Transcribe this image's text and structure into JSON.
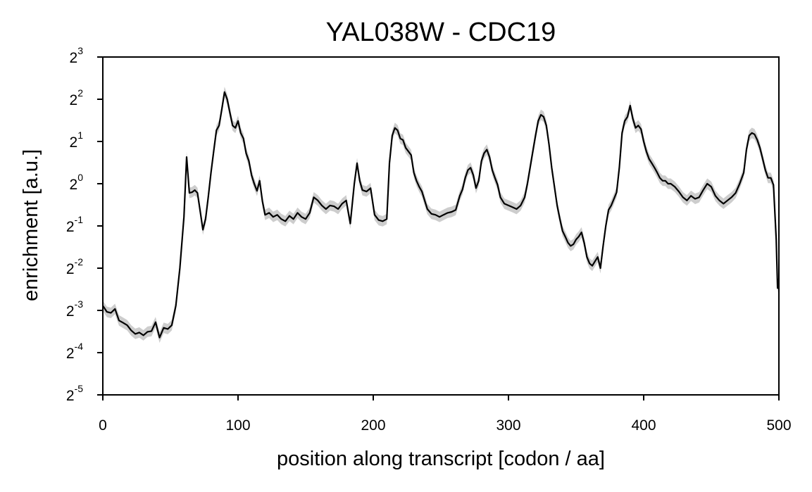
{
  "chart_data": {
    "type": "line",
    "title": "YAL038W - CDC19",
    "xlabel": "position along transcript [codon / aa]",
    "ylabel": "enrichment [a.u.]",
    "xlim": [
      0,
      500
    ],
    "ylim_log2": [
      -5,
      3
    ],
    "yscale": "log2",
    "grid": false,
    "x_ticks": [
      0,
      100,
      200,
      300,
      400,
      500
    ],
    "y_tick_exponents": [
      -5,
      -4,
      -3,
      -2,
      -1,
      0,
      1,
      2,
      3
    ],
    "y_tick_base": "2",
    "colors": {
      "line": "#000000",
      "band": "#c8c8c8"
    },
    "series": [
      {
        "points": [
          [
            0,
            0.135
          ],
          [
            3,
            0.122
          ],
          [
            6,
            0.12
          ],
          [
            9,
            0.128
          ],
          [
            12,
            0.106
          ],
          [
            15,
            0.102
          ],
          [
            18,
            0.098
          ],
          [
            21,
            0.09
          ],
          [
            24,
            0.085
          ],
          [
            27,
            0.087
          ],
          [
            30,
            0.083
          ],
          [
            33,
            0.088
          ],
          [
            36,
            0.089
          ],
          [
            39,
            0.103
          ],
          [
            42,
            0.08
          ],
          [
            45,
            0.094
          ],
          [
            48,
            0.092
          ],
          [
            51,
            0.098
          ],
          [
            54,
            0.135
          ],
          [
            57,
            0.25
          ],
          [
            60,
            0.58
          ],
          [
            62,
            1.55
          ],
          [
            64,
            0.86
          ],
          [
            66,
            0.87
          ],
          [
            68,
            0.9
          ],
          [
            70,
            0.86
          ],
          [
            72,
            0.64
          ],
          [
            74,
            0.47
          ],
          [
            76,
            0.56
          ],
          [
            78,
            0.81
          ],
          [
            80,
            1.2
          ],
          [
            82,
            1.7
          ],
          [
            84,
            2.4
          ],
          [
            86,
            2.6
          ],
          [
            88,
            3.4
          ],
          [
            90,
            4.5
          ],
          [
            92,
            4.0
          ],
          [
            94,
            3.2
          ],
          [
            96,
            2.6
          ],
          [
            98,
            2.5
          ],
          [
            100,
            2.8
          ],
          [
            102,
            2.3
          ],
          [
            104,
            2.1
          ],
          [
            106,
            1.65
          ],
          [
            108,
            1.45
          ],
          [
            110,
            1.15
          ],
          [
            112,
            1.0
          ],
          [
            114,
            0.89
          ],
          [
            116,
            1.05
          ],
          [
            118,
            0.75
          ],
          [
            120,
            0.6
          ],
          [
            123,
            0.62
          ],
          [
            126,
            0.58
          ],
          [
            129,
            0.6
          ],
          [
            132,
            0.56
          ],
          [
            135,
            0.54
          ],
          [
            138,
            0.59
          ],
          [
            141,
            0.56
          ],
          [
            144,
            0.62
          ],
          [
            147,
            0.58
          ],
          [
            150,
            0.56
          ],
          [
            153,
            0.62
          ],
          [
            156,
            0.8
          ],
          [
            159,
            0.76
          ],
          [
            162,
            0.7
          ],
          [
            165,
            0.66
          ],
          [
            168,
            0.7
          ],
          [
            171,
            0.69
          ],
          [
            174,
            0.66
          ],
          [
            177,
            0.72
          ],
          [
            180,
            0.76
          ],
          [
            183,
            0.52
          ],
          [
            186,
            1.0
          ],
          [
            188,
            1.4
          ],
          [
            190,
            1.05
          ],
          [
            192,
            0.9
          ],
          [
            195,
            0.88
          ],
          [
            198,
            0.93
          ],
          [
            201,
            0.6
          ],
          [
            204,
            0.55
          ],
          [
            207,
            0.54
          ],
          [
            210,
            0.56
          ],
          [
            212,
            1.4
          ],
          [
            214,
            2.2
          ],
          [
            216,
            2.5
          ],
          [
            218,
            2.4
          ],
          [
            220,
            2.1
          ],
          [
            222,
            2.05
          ],
          [
            224,
            1.8
          ],
          [
            226,
            1.7
          ],
          [
            228,
            1.6
          ],
          [
            230,
            1.2
          ],
          [
            232,
            1.05
          ],
          [
            234,
            0.95
          ],
          [
            236,
            0.88
          ],
          [
            238,
            0.76
          ],
          [
            240,
            0.66
          ],
          [
            243,
            0.61
          ],
          [
            246,
            0.6
          ],
          [
            249,
            0.58
          ],
          [
            252,
            0.6
          ],
          [
            255,
            0.62
          ],
          [
            258,
            0.63
          ],
          [
            261,
            0.65
          ],
          [
            264,
            0.82
          ],
          [
            266,
            0.91
          ],
          [
            268,
            1.1
          ],
          [
            270,
            1.25
          ],
          [
            272,
            1.3
          ],
          [
            274,
            1.15
          ],
          [
            276,
            0.93
          ],
          [
            278,
            1.05
          ],
          [
            280,
            1.45
          ],
          [
            282,
            1.65
          ],
          [
            284,
            1.75
          ],
          [
            286,
            1.55
          ],
          [
            288,
            1.25
          ],
          [
            290,
            1.1
          ],
          [
            292,
            0.98
          ],
          [
            294,
            0.8
          ],
          [
            297,
            0.72
          ],
          [
            300,
            0.7
          ],
          [
            303,
            0.68
          ],
          [
            306,
            0.66
          ],
          [
            309,
            0.7
          ],
          [
            312,
            0.8
          ],
          [
            314,
            1.0
          ],
          [
            316,
            1.3
          ],
          [
            318,
            1.7
          ],
          [
            320,
            2.2
          ],
          [
            322,
            2.8
          ],
          [
            324,
            3.1
          ],
          [
            326,
            3.0
          ],
          [
            328,
            2.6
          ],
          [
            330,
            1.9
          ],
          [
            332,
            1.3
          ],
          [
            334,
            0.95
          ],
          [
            336,
            0.7
          ],
          [
            338,
            0.56
          ],
          [
            340,
            0.46
          ],
          [
            342,
            0.42
          ],
          [
            344,
            0.38
          ],
          [
            346,
            0.36
          ],
          [
            348,
            0.37
          ],
          [
            350,
            0.4
          ],
          [
            352,
            0.42
          ],
          [
            354,
            0.45
          ],
          [
            356,
            0.38
          ],
          [
            358,
            0.3
          ],
          [
            360,
            0.27
          ],
          [
            362,
            0.26
          ],
          [
            364,
            0.28
          ],
          [
            366,
            0.3
          ],
          [
            368,
            0.25
          ],
          [
            370,
            0.36
          ],
          [
            372,
            0.5
          ],
          [
            374,
            0.65
          ],
          [
            376,
            0.7
          ],
          [
            378,
            0.78
          ],
          [
            380,
            0.87
          ],
          [
            382,
            1.3
          ],
          [
            384,
            2.3
          ],
          [
            386,
            2.8
          ],
          [
            388,
            3.0
          ],
          [
            390,
            3.6
          ],
          [
            392,
            2.9
          ],
          [
            394,
            2.5
          ],
          [
            396,
            2.6
          ],
          [
            398,
            2.45
          ],
          [
            400,
            2.0
          ],
          [
            402,
            1.7
          ],
          [
            404,
            1.5
          ],
          [
            406,
            1.4
          ],
          [
            408,
            1.3
          ],
          [
            410,
            1.2
          ],
          [
            412,
            1.1
          ],
          [
            414,
            1.05
          ],
          [
            416,
            1.05
          ],
          [
            418,
            1.0
          ],
          [
            420,
            1.0
          ],
          [
            423,
            0.95
          ],
          [
            426,
            0.88
          ],
          [
            429,
            0.8
          ],
          [
            432,
            0.76
          ],
          [
            435,
            0.82
          ],
          [
            438,
            0.78
          ],
          [
            441,
            0.8
          ],
          [
            444,
            0.9
          ],
          [
            447,
            1.0
          ],
          [
            450,
            0.95
          ],
          [
            453,
            0.82
          ],
          [
            456,
            0.76
          ],
          [
            459,
            0.72
          ],
          [
            462,
            0.76
          ],
          [
            465,
            0.8
          ],
          [
            468,
            0.86
          ],
          [
            471,
            1.0
          ],
          [
            474,
            1.2
          ],
          [
            476,
            1.75
          ],
          [
            478,
            2.2
          ],
          [
            480,
            2.3
          ],
          [
            482,
            2.25
          ],
          [
            484,
            2.05
          ],
          [
            486,
            1.8
          ],
          [
            488,
            1.5
          ],
          [
            490,
            1.25
          ],
          [
            492,
            1.1
          ],
          [
            494,
            1.1
          ],
          [
            496,
            0.98
          ],
          [
            498,
            0.4
          ],
          [
            499,
            0.18
          ],
          [
            500,
            0.21
          ]
        ]
      }
    ]
  }
}
